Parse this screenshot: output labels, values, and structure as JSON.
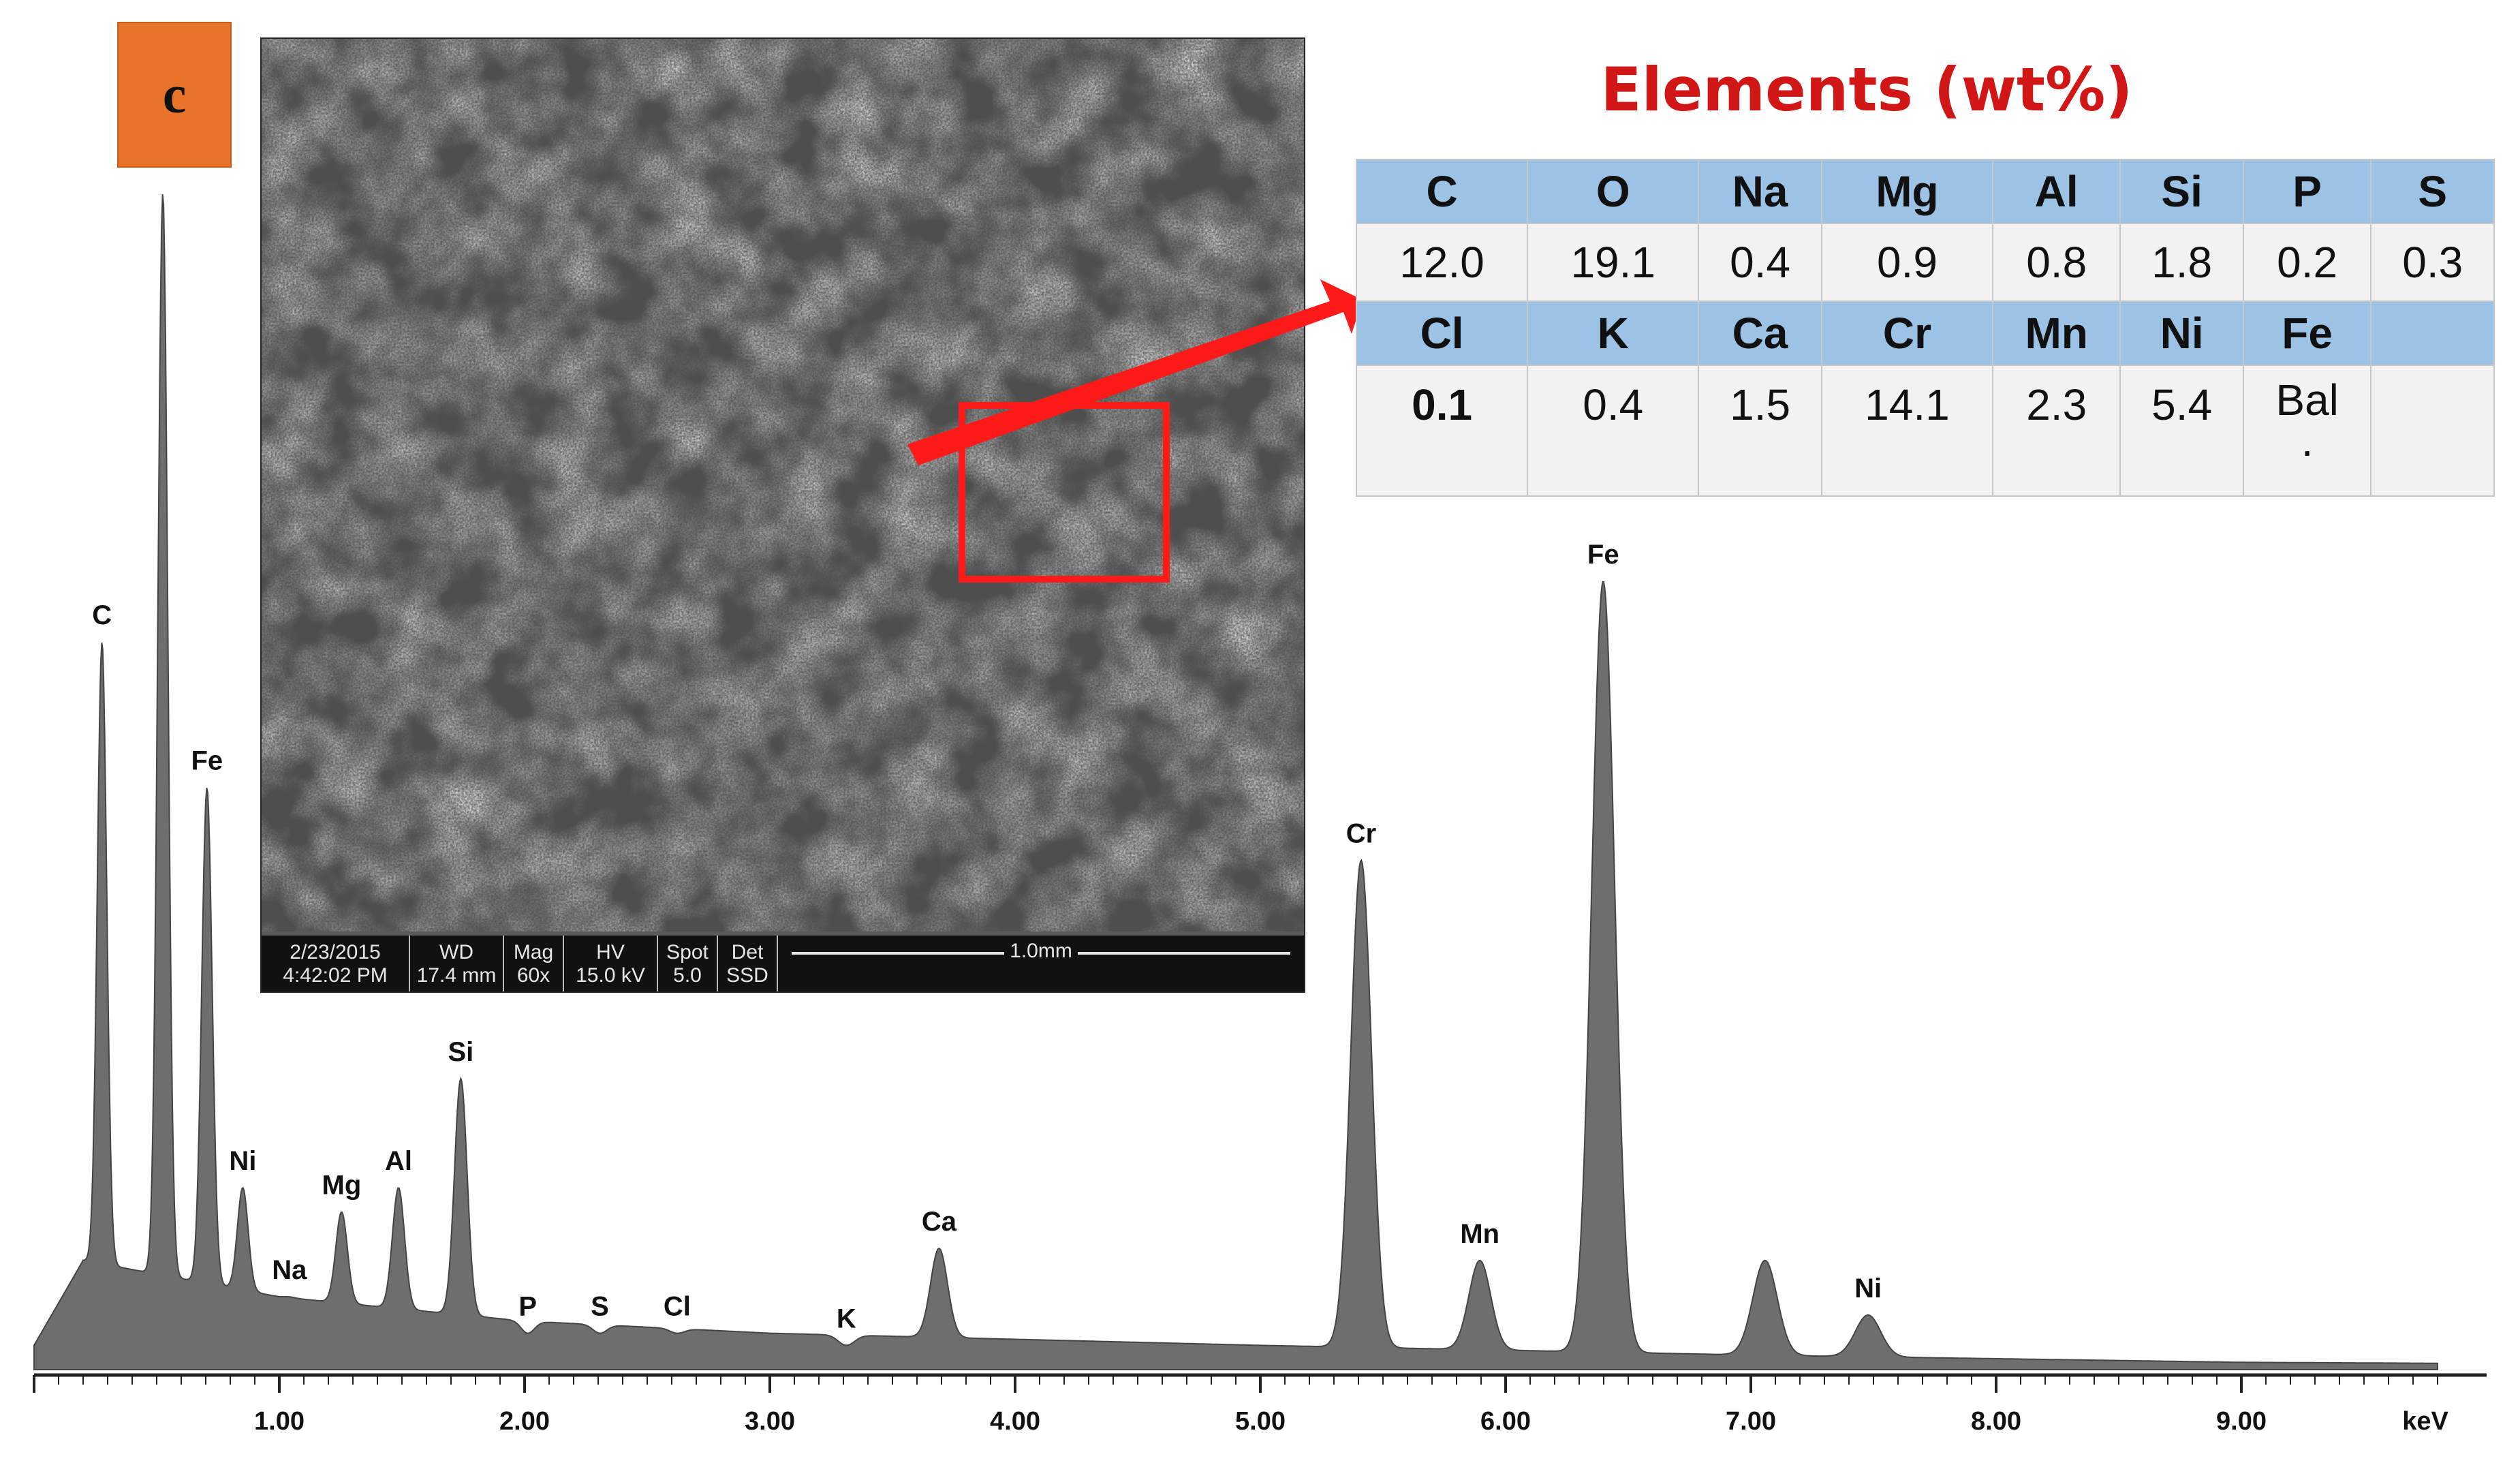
{
  "panel_label": "c",
  "chart_data": {
    "type": "area",
    "xlabel": "keV",
    "xlim": [
      0,
      10
    ],
    "ylim": [
      0,
      100
    ],
    "x_ticks": [
      "1.00",
      "2.00",
      "3.00",
      "4.00",
      "5.00",
      "6.00",
      "7.00",
      "8.00",
      "9.00"
    ],
    "baseline": [
      [
        0.0,
        2
      ],
      [
        0.2,
        9
      ],
      [
        1.0,
        6
      ],
      [
        2.0,
        4
      ],
      [
        3.0,
        3
      ],
      [
        4.0,
        2.5
      ],
      [
        5.0,
        2
      ],
      [
        6.0,
        1.6
      ],
      [
        7.0,
        1.2
      ],
      [
        8.0,
        0.9
      ],
      [
        9.0,
        0.6
      ],
      [
        10.0,
        0.5
      ]
    ],
    "peaks": [
      {
        "label": "C",
        "energy": 0.277,
        "height": 60
      },
      {
        "label": "",
        "energy": 0.525,
        "height": 97
      },
      {
        "label": "Fe",
        "energy": 0.705,
        "height": 48
      },
      {
        "label": "Ni",
        "energy": 0.851,
        "height": 15
      },
      {
        "label": "Na",
        "energy": 1.041,
        "height": 6
      },
      {
        "label": "Mg",
        "energy": 1.254,
        "height": 13
      },
      {
        "label": "Al",
        "energy": 1.486,
        "height": 15
      },
      {
        "label": "Si",
        "energy": 1.74,
        "height": 24
      },
      {
        "label": "P",
        "energy": 2.013,
        "height": 3
      },
      {
        "label": "S",
        "energy": 2.307,
        "height": 3
      },
      {
        "label": "Cl",
        "energy": 2.622,
        "height": 3
      },
      {
        "label": "K",
        "energy": 3.312,
        "height": 2
      },
      {
        "label": "Ca",
        "energy": 3.69,
        "height": 10
      },
      {
        "label": "Cr",
        "energy": 5.411,
        "height": 42
      },
      {
        "label": "Mn",
        "energy": 5.895,
        "height": 9
      },
      {
        "label": "Fe",
        "energy": 6.398,
        "height": 65
      },
      {
        "label": "",
        "energy": 7.058,
        "height": 9
      },
      {
        "label": "Ni",
        "energy": 7.478,
        "height": 4.5
      }
    ]
  },
  "sem_image": {
    "date": "2/23/2015",
    "time": "4:42:02 PM",
    "wd_label": "WD",
    "wd_value": "17.4 mm",
    "mag_label": "Mag",
    "mag_value": "60x",
    "hv_label": "HV",
    "hv_value": "15.0 kV",
    "spot_label": "Spot",
    "spot_value": "5.0",
    "det_label": "Det",
    "det_value": "SSD",
    "scale_bar": "1.0mm"
  },
  "elements_table": {
    "title": "Elements (wt%)",
    "row1_headers": [
      "C",
      "O",
      "Na",
      "Mg",
      "Al",
      "Si",
      "P",
      "S"
    ],
    "row1_values": [
      "12.0",
      "19.1",
      "0.4",
      "0.9",
      "0.8",
      "1.8",
      "0.2",
      "0.3"
    ],
    "row2_headers": [
      "Cl",
      "K",
      "Ca",
      "Cr",
      "Mn",
      "Ni",
      "Fe",
      ""
    ],
    "row2_values": [
      "0.1",
      "0.4",
      "1.5",
      "14.1",
      "2.3",
      "5.4",
      "Bal\n.",
      ""
    ]
  },
  "colors": {
    "spectrum_fill": "#6e6e6e",
    "spectrum_stroke": "#444444",
    "roi": "#ff1a1a",
    "arrow": "#ff1a1a",
    "table_header": "#9cc3e6",
    "table_title": "#d11616",
    "badge": "#e8742a"
  }
}
